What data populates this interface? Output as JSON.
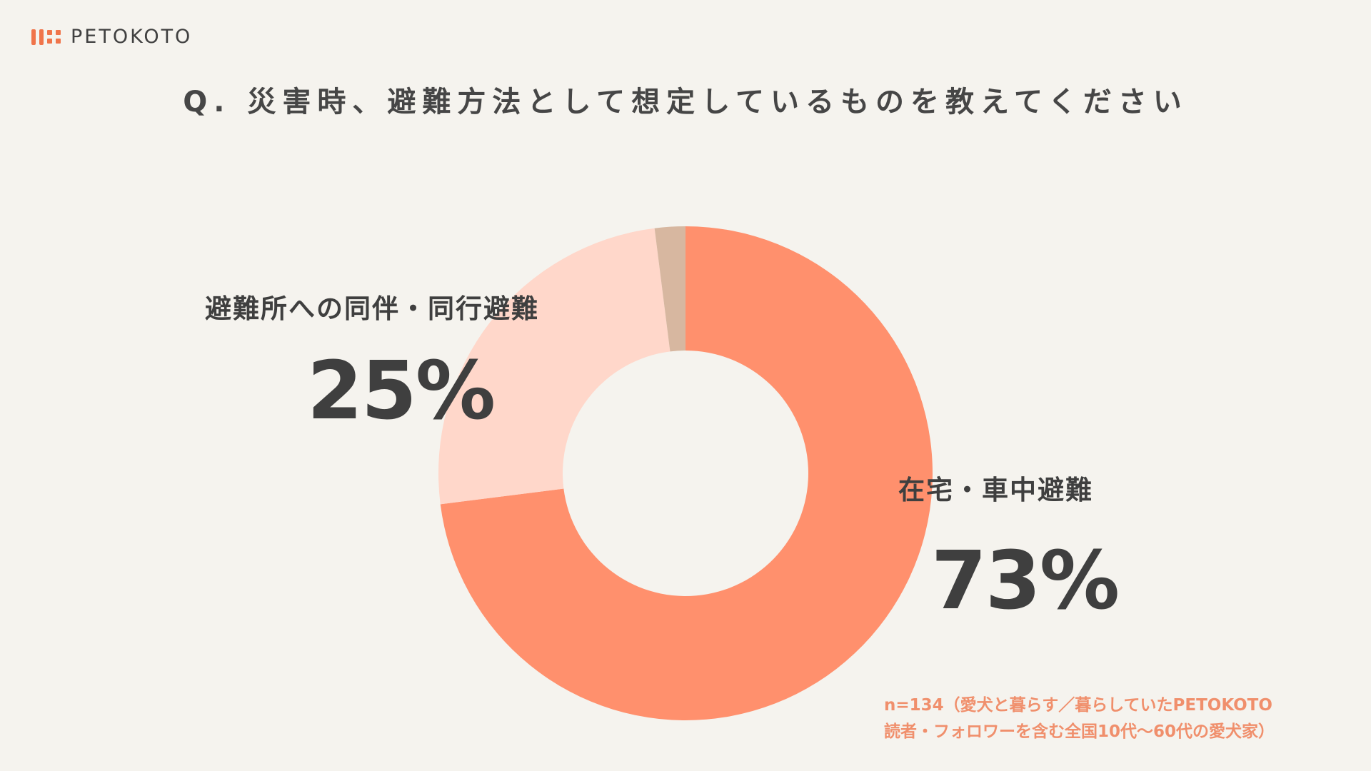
{
  "brand": {
    "name": "PETOKOTO",
    "accent": "#f0744a"
  },
  "title": "Q. 災害時、避難方法として想定しているものを教えてください",
  "chart_data": {
    "type": "pie",
    "variant": "donut",
    "title": "Q. 災害時、避難方法として想定しているものを教えてください",
    "series": [
      {
        "name": "在宅・車中避難",
        "value": 73,
        "label": "73%",
        "color": "#ff906d"
      },
      {
        "name": "避難所への同伴・同行避難",
        "value": 25,
        "label": "25%",
        "color": "#ffd7ca"
      },
      {
        "name": "",
        "value": 2,
        "label": "",
        "color": "#d7b7a0"
      }
    ],
    "start_at": "top",
    "direction": "clockwise",
    "legend": "none"
  },
  "note": {
    "line1": "n=134（愛犬と暮らす／暮らしていたPETOKOTO",
    "line2": "読者・フォロワーを含む全国10代〜60代の愛犬家）"
  }
}
